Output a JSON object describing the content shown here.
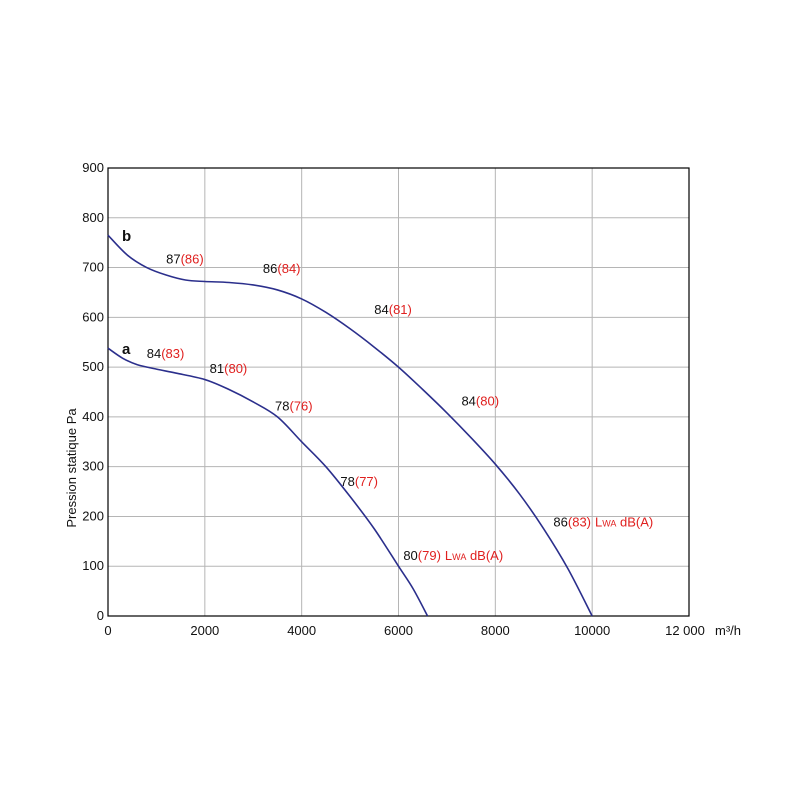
{
  "chart_data": {
    "type": "line",
    "ylabel": "Pression statique Pa",
    "xlabel_unit": "m³/h",
    "xlim": [
      0,
      12000
    ],
    "ylim": [
      0,
      900
    ],
    "grid": true,
    "x_ticks": [
      {
        "value": 0,
        "label": "0"
      },
      {
        "value": 2000,
        "label": "2000"
      },
      {
        "value": 4000,
        "label": "4000"
      },
      {
        "value": 6000,
        "label": "6000"
      },
      {
        "value": 8000,
        "label": "8000"
      },
      {
        "value": 10000,
        "label": "10000"
      },
      {
        "value": 12000,
        "label": "12 000"
      }
    ],
    "y_ticks": [
      {
        "value": 0,
        "label": "0"
      },
      {
        "value": 100,
        "label": "100"
      },
      {
        "value": 200,
        "label": "200"
      },
      {
        "value": 300,
        "label": "300"
      },
      {
        "value": 400,
        "label": "400"
      },
      {
        "value": 500,
        "label": "500"
      },
      {
        "value": 600,
        "label": "600"
      },
      {
        "value": 700,
        "label": "700"
      },
      {
        "value": 800,
        "label": "800"
      },
      {
        "value": 900,
        "label": "900"
      }
    ],
    "series_color": "#2b2f8c",
    "series": [
      {
        "name": "b",
        "x": [
          0,
          400,
          800,
          1200,
          1600,
          2000,
          2500,
          3000,
          3500,
          4000,
          4500,
          5000,
          5500,
          6000,
          6500,
          7000,
          7500,
          8000,
          8500,
          9000,
          9500,
          10000
        ],
        "y": [
          765,
          725,
          700,
          685,
          675,
          672,
          670,
          665,
          655,
          637,
          610,
          577,
          540,
          500,
          455,
          408,
          358,
          305,
          245,
          175,
          95,
          0
        ],
        "annotations": [
          {
            "x": 1200,
            "y": 708,
            "black": "87",
            "red": "(86)"
          },
          {
            "x": 3200,
            "y": 689,
            "black": "86",
            "red": "(84)"
          },
          {
            "x": 5500,
            "y": 607,
            "black": "84",
            "red": "(81)"
          },
          {
            "x": 7300,
            "y": 423,
            "black": "84",
            "red": "(80)"
          },
          {
            "x": 9200,
            "y": 180,
            "black": "86",
            "red": "(83)",
            "suffix": "Lwa dB(A)"
          }
        ]
      },
      {
        "name": "a",
        "x": [
          0,
          300,
          600,
          1000,
          1400,
          2000,
          2500,
          3000,
          3500,
          4000,
          4500,
          5000,
          5500,
          6000,
          6300,
          6600
        ],
        "y": [
          538,
          518,
          505,
          496,
          488,
          475,
          455,
          430,
          400,
          350,
          300,
          240,
          175,
          100,
          55,
          0
        ],
        "annotations": [
          {
            "x": 800,
            "y": 518,
            "black": "84",
            "red": "(83)"
          },
          {
            "x": 2100,
            "y": 488,
            "black": "81",
            "red": "(80)"
          },
          {
            "x": 3450,
            "y": 413,
            "black": "78",
            "red": "(76)"
          },
          {
            "x": 4800,
            "y": 261,
            "black": "78",
            "red": "(77)"
          },
          {
            "x": 6100,
            "y": 113,
            "black": "80",
            "red": "(79)",
            "suffix": "Lwa dB(A)"
          }
        ]
      }
    ]
  }
}
